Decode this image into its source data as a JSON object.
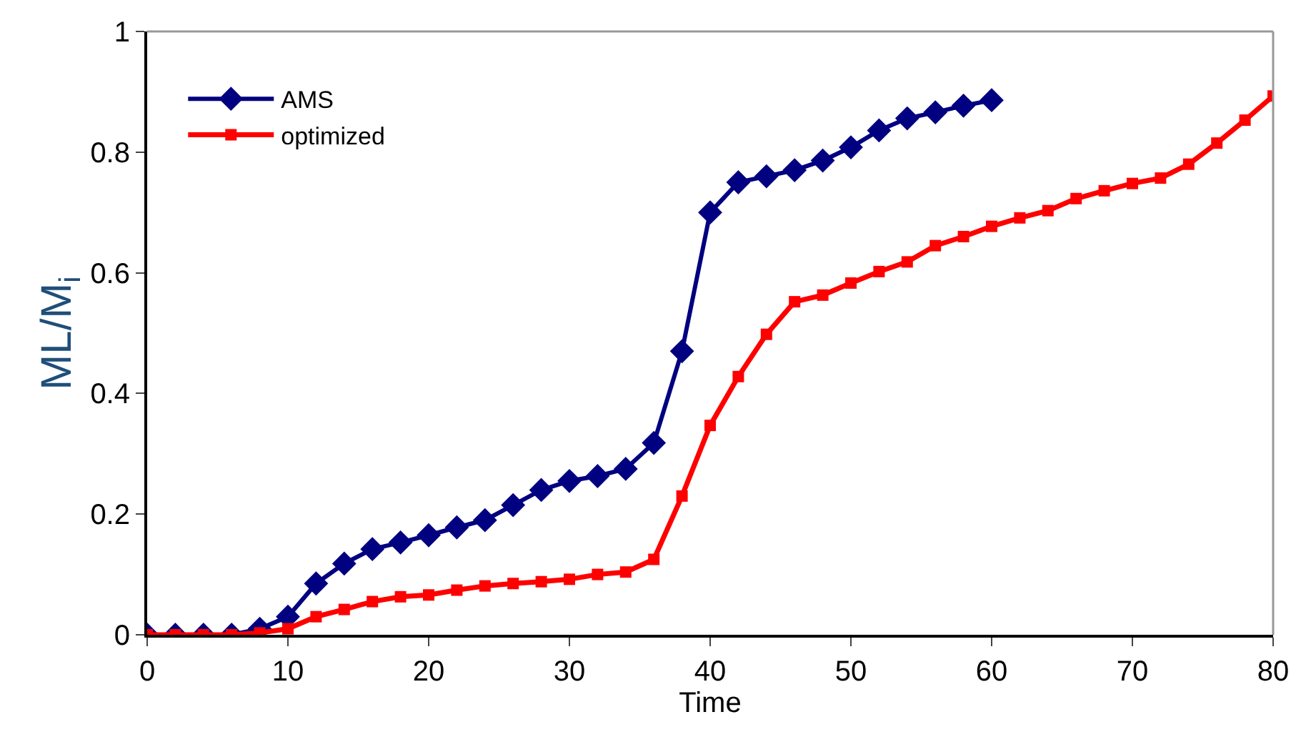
{
  "chart_data": {
    "type": "line",
    "xlabel": "Time",
    "ylabel": "ML/M$_{i}$",
    "x": [
      0,
      2,
      4,
      6,
      8,
      10,
      12,
      14,
      16,
      18,
      20,
      22,
      24,
      26,
      28,
      30,
      32,
      34,
      36,
      38,
      40,
      42,
      44,
      46,
      48,
      50,
      52,
      54,
      56,
      58,
      60,
      62,
      64,
      66,
      68,
      70,
      72,
      74,
      76,
      78,
      80
    ],
    "series": [
      {
        "name": "AMS",
        "color": "#000080",
        "marker": "diamond",
        "x": [
          0,
          2,
          4,
          6,
          8,
          10,
          12,
          14,
          16,
          18,
          20,
          22,
          24,
          26,
          28,
          30,
          32,
          34,
          36,
          38,
          40,
          42,
          44,
          46,
          48,
          50,
          52,
          54,
          56,
          58,
          60
        ],
        "values": [
          0,
          0,
          0,
          0,
          0.01,
          0.03,
          0.085,
          0.118,
          0.142,
          0.153,
          0.165,
          0.178,
          0.19,
          0.215,
          0.24,
          0.255,
          0.263,
          0.275,
          0.318,
          0.47,
          0.7,
          0.75,
          0.76,
          0.77,
          0.786,
          0.808,
          0.836,
          0.856,
          0.866,
          0.877,
          0.886
        ]
      },
      {
        "name": "optimized",
        "color": "#ff0000",
        "marker": "square",
        "values": [
          0,
          0,
          0,
          0,
          0.003,
          0.01,
          0.03,
          0.042,
          0.055,
          0.063,
          0.066,
          0.074,
          0.081,
          0.085,
          0.088,
          0.092,
          0.1,
          0.104,
          0.125,
          0.23,
          0.347,
          0.428,
          0.498,
          0.552,
          0.563,
          0.583,
          0.602,
          0.618,
          0.645,
          0.66,
          0.677,
          0.691,
          0.703,
          0.723,
          0.736,
          0.748,
          0.757,
          0.78,
          0.815,
          0.853,
          0.893
        ]
      }
    ],
    "xlim": [
      0,
      80
    ],
    "xticks": [
      0,
      10,
      20,
      30,
      40,
      50,
      60,
      70,
      80
    ],
    "ylim": [
      0,
      1
    ],
    "yticks": [
      0,
      0.2,
      0.4,
      0.6,
      0.8,
      1
    ],
    "legend": "top left",
    "line_style": "solid"
  }
}
